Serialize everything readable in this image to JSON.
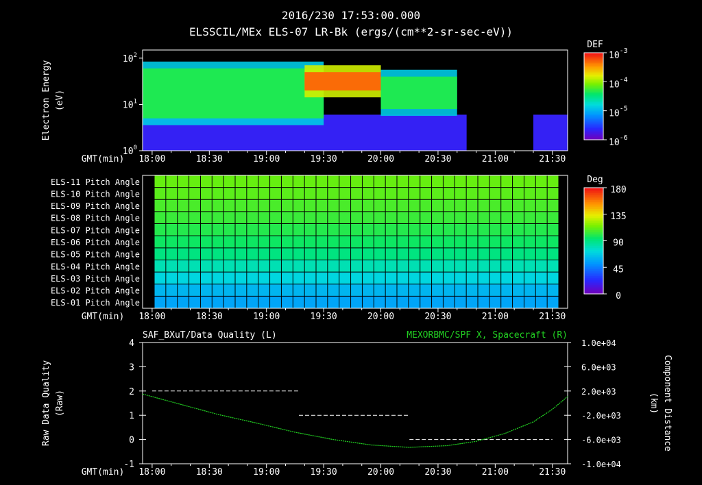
{
  "header": {
    "timestamp": "2016/230 17:53:00.000",
    "subtitle": "ELSSCIL/MEx ELS-07 LR-Bk  (ergs/(cm**2-sr-sec-eV))"
  },
  "time_axis": {
    "label": "GMT(min)",
    "ticks": [
      "18:00",
      "18:30",
      "19:00",
      "19:30",
      "20:00",
      "20:30",
      "21:00",
      "21:30"
    ]
  },
  "colors": {
    "background": "#000000",
    "text": "#ffffff",
    "spacecraft_trace": "#22d022",
    "quality_trace": "#ffffff"
  },
  "chart_data": [
    {
      "type": "heatmap",
      "ylabel": [
        "Electron Energy",
        "(eV)"
      ],
      "y_scale": "log",
      "ylim": [
        1,
        150
      ],
      "y_ticks": [
        {
          "base": "10",
          "exp": "0"
        },
        {
          "base": "10",
          "exp": "1"
        },
        {
          "base": "10",
          "exp": "2"
        }
      ],
      "xlim_minutes": [
        1075,
        1298
      ],
      "colorbar": {
        "title": "DEF",
        "scale": "log",
        "ticks": [
          {
            "base": "10",
            "exp": "-3"
          },
          {
            "base": "10",
            "exp": "-4"
          },
          {
            "base": "10",
            "exp": "-5"
          },
          {
            "base": "10",
            "exp": "-6"
          }
        ]
      },
      "features": [
        {
          "x_range_minutes": [
            1075,
            1170
          ],
          "band_energy_eV": [
            5,
            60
          ],
          "level": "mid (green)"
        },
        {
          "x_range_minutes": [
            1160,
            1200
          ],
          "band_energy_eV": [
            20,
            50
          ],
          "level": "high (orange-red)"
        },
        {
          "x_range_minutes": [
            1200,
            1240
          ],
          "band_energy_eV": [
            8,
            40
          ],
          "level": "mid (green)"
        },
        {
          "x_range_minutes": [
            1245,
            1280
          ],
          "band_energy_eV": [
            1,
            8
          ],
          "level": "background (black)"
        }
      ]
    },
    {
      "type": "heatmap",
      "colorbar": {
        "title": "Deg",
        "ticks": [
          "180",
          "135",
          "90",
          "45",
          "0"
        ],
        "vmin": 0,
        "vmax": 180
      },
      "rows": [
        {
          "label": "ELS-11 Pitch Angle",
          "value": 112
        },
        {
          "label": "ELS-10 Pitch Angle",
          "value": 110
        },
        {
          "label": "ELS-09 Pitch Angle",
          "value": 107
        },
        {
          "label": "ELS-08 Pitch Angle",
          "value": 104
        },
        {
          "label": "ELS-07 Pitch Angle",
          "value": 100
        },
        {
          "label": "ELS-06 Pitch Angle",
          "value": 96
        },
        {
          "label": "ELS-05 Pitch Angle",
          "value": 90
        },
        {
          "label": "ELS-04 Pitch Angle",
          "value": 80
        },
        {
          "label": "ELS-03 Pitch Angle",
          "value": 70
        },
        {
          "label": "ELS-02 Pitch Angle",
          "value": 60
        },
        {
          "label": "ELS-01 Pitch Angle",
          "value": 55
        }
      ],
      "xlim_minutes": [
        1080,
        1294
      ]
    },
    {
      "type": "line",
      "title_left": "SAF_BXuT/Data Quality (L)",
      "title_right": "MEXORBMC/SPF X, Spacecraft (R)",
      "ylabel_left": [
        "Raw Data Quality",
        "(Raw)"
      ],
      "ylabel_right": [
        "Component Distance",
        "(km)"
      ],
      "ylim_left": [
        -1,
        4
      ],
      "y_ticks_left": [
        "4",
        "3",
        "2",
        "1",
        "0",
        "-1"
      ],
      "ylim_right": [
        -10000,
        10000
      ],
      "y_ticks_right": [
        "1.0e+04",
        "6.0e+03",
        "2.0e+03",
        "-2.0e+03",
        "-6.0e+03",
        "-1.0e+04"
      ],
      "series": [
        {
          "axis": "left",
          "style": "dashed",
          "segments": [
            {
              "x_minutes": [
                1080,
                1157
              ],
              "y": 2
            },
            {
              "x_minutes": [
                1157,
                1215
              ],
              "y": 1
            },
            {
              "x_minutes": [
                1215,
                1290
              ],
              "y": 0
            }
          ]
        },
        {
          "axis": "right",
          "style": "dotted",
          "x_minutes": [
            1075,
            1095,
            1115,
            1135,
            1155,
            1175,
            1195,
            1215,
            1235,
            1250,
            1265,
            1280,
            1290,
            1298
          ],
          "y": [
            1500,
            -200,
            -1900,
            -3300,
            -4800,
            -6000,
            -6900,
            -7300,
            -7000,
            -6300,
            -5000,
            -3100,
            -1000,
            1100
          ]
        }
      ]
    }
  ]
}
